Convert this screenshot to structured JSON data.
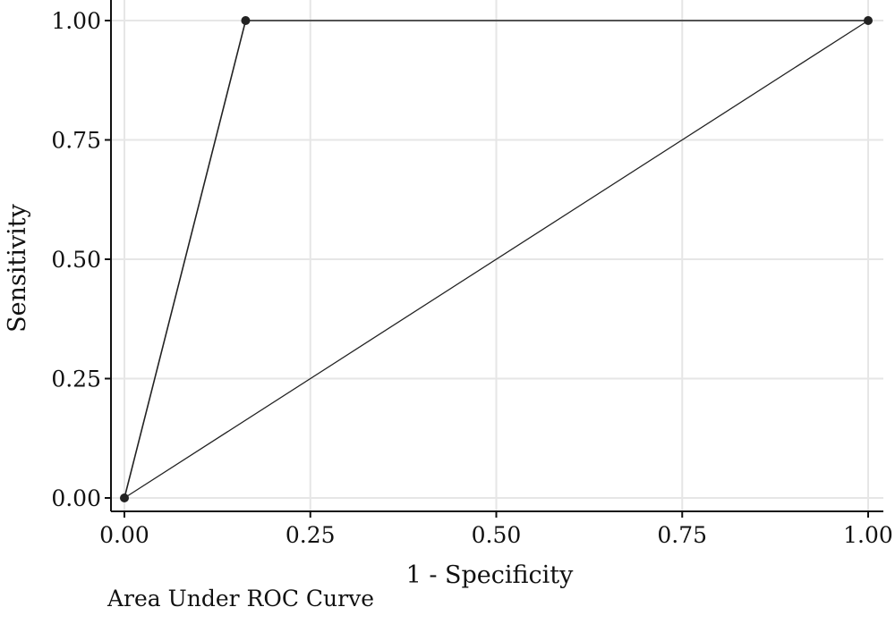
{
  "chart_data": {
    "type": "line",
    "xlabel": "1 - Specificity",
    "ylabel": "Sensitivity",
    "footnote": "Area Under ROC Curve",
    "xlim": [
      0,
      1
    ],
    "ylim": [
      0,
      1
    ],
    "x_ticks": [
      0,
      0.25,
      0.5,
      0.75,
      1
    ],
    "x_tick_labels": [
      "0.00",
      "0.25",
      "0.50",
      "0.75",
      "1.00"
    ],
    "y_ticks": [
      0,
      0.25,
      0.5,
      0.75,
      1
    ],
    "y_tick_labels": [
      "0.00",
      "0.25",
      "0.50",
      "0.75",
      "1.00"
    ],
    "grid": true,
    "series": [
      {
        "x": [
          0,
          0.163,
          1
        ],
        "y": [
          0,
          1,
          1
        ],
        "markers": true
      },
      {
        "x": [
          0,
          1
        ],
        "y": [
          0,
          1
        ],
        "markers": false,
        "role": "reference"
      }
    ],
    "colors": {
      "line": "#222222",
      "grid": "#e6e6e6",
      "axis": "#111111"
    }
  }
}
